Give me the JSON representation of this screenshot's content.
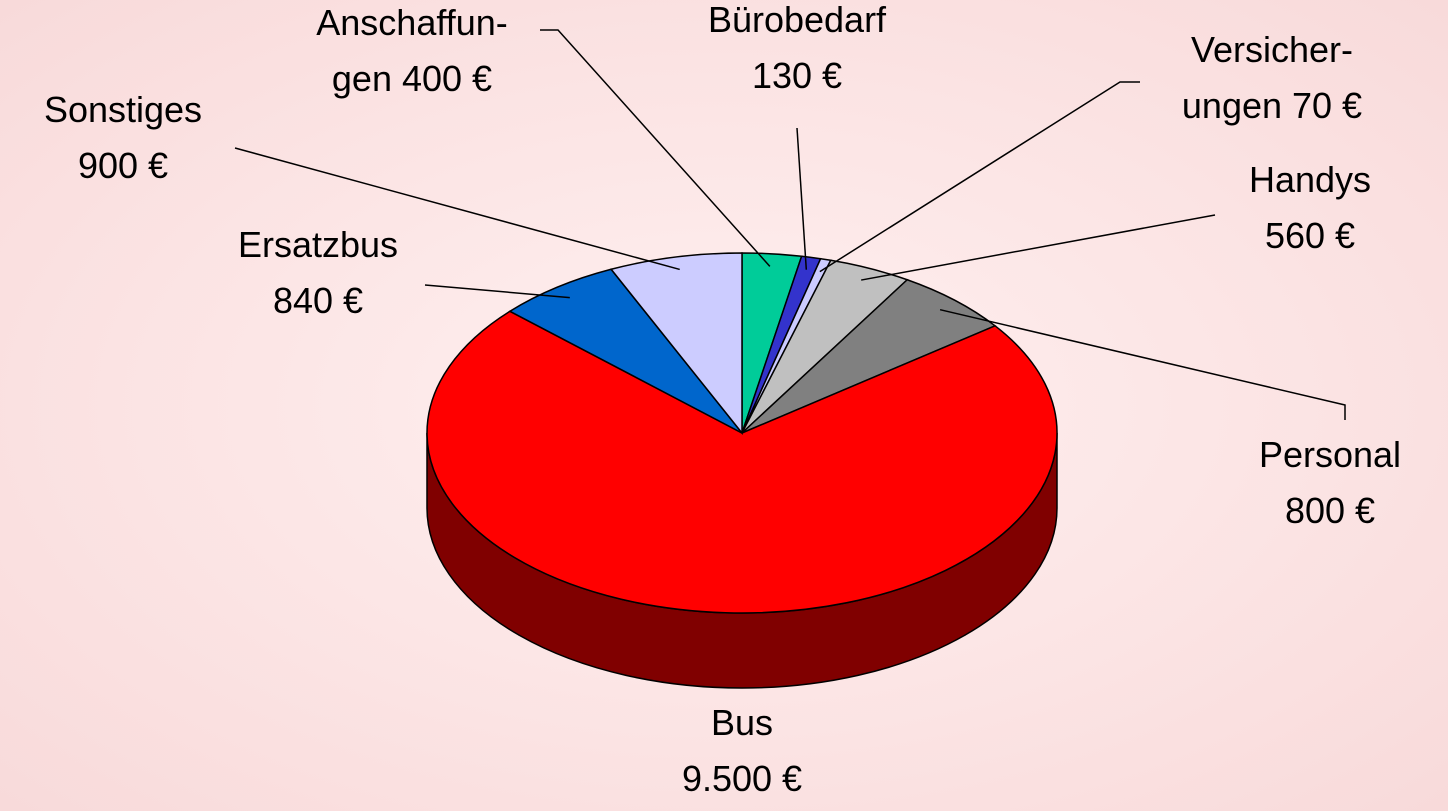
{
  "chart_data": {
    "type": "pie3d",
    "categories": [
      "Anschaffun-\ngen",
      "Bürobedarf",
      "Versicher-\nungen",
      "Handys",
      "Personal",
      "Bus",
      "Ersatzbus",
      "Sonstiges"
    ],
    "values": [
      400,
      130,
      70,
      560,
      800,
      9500,
      840,
      900
    ],
    "value_labels": [
      "400 €",
      "130 €",
      "70 €",
      "560 €",
      "800 €",
      "9.500 €",
      "840 €",
      "900 €"
    ],
    "colors": [
      "#00cc99",
      "#3333cc",
      "#ccccff",
      "#c0c0c0",
      "#808080",
      "#ff0000",
      "#0066cc",
      "#ccccff"
    ]
  }
}
